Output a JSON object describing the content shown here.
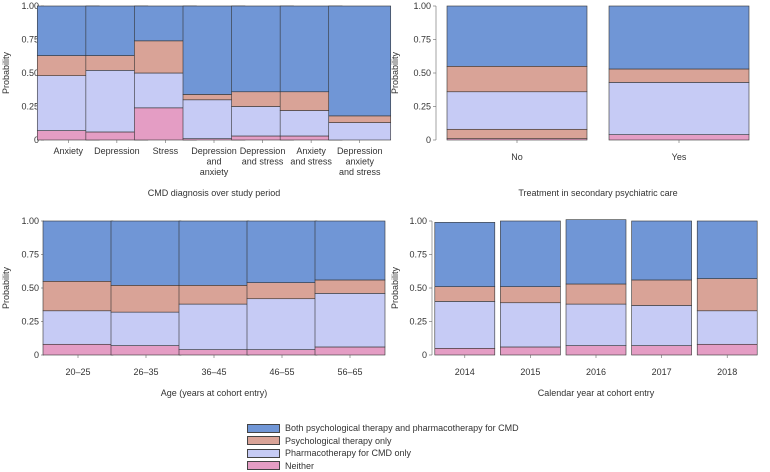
{
  "colors": {
    "both": "#7096D6",
    "psych": "#D9A397",
    "pharma": "#C6CBF5",
    "neither": "#E49DC4"
  },
  "legend": [
    {
      "key": "both",
      "label": "Both psychological therapy and pharmacotherapy for CMD"
    },
    {
      "key": "psych",
      "label": "Psychological therapy only"
    },
    {
      "key": "pharma",
      "label": "Pharmacotherapy for CMD only"
    },
    {
      "key": "neither",
      "label": "Neither"
    }
  ],
  "chart_data": [
    {
      "id": "cmd",
      "type": "bar",
      "stacked": true,
      "ylabel": "Probability",
      "xlabel": "CMD diagnosis over study period",
      "ylim": [
        0,
        1
      ],
      "yticks": [
        "0",
        "0.25",
        "0.50",
        "0.75",
        "1.00"
      ],
      "categories": [
        [
          "Anxiety"
        ],
        [
          "Depression"
        ],
        [
          "Stress"
        ],
        [
          "Depression",
          "and",
          "anxiety"
        ],
        [
          "Depression",
          "and stress"
        ],
        [
          "Anxiety",
          "and stress"
        ],
        [
          "Depression",
          "anxiety",
          "and stress"
        ]
      ],
      "series": [
        {
          "key": "neither",
          "name": "Neither",
          "values": [
            0.07,
            0.06,
            0.24,
            0.01,
            0.03,
            0.03,
            0.0
          ]
        },
        {
          "key": "pharma",
          "name": "Pharmacotherapy for CMD only",
          "values": [
            0.41,
            0.46,
            0.26,
            0.29,
            0.22,
            0.19,
            0.13
          ]
        },
        {
          "key": "psych",
          "name": "Psychological therapy only",
          "values": [
            0.15,
            0.11,
            0.24,
            0.04,
            0.11,
            0.14,
            0.05
          ]
        },
        {
          "key": "both",
          "name": "Both psychological therapy and pharmacotherapy for CMD",
          "values": [
            0.37,
            0.37,
            0.26,
            0.66,
            0.64,
            0.64,
            0.82
          ]
        }
      ]
    },
    {
      "id": "secondary",
      "type": "bar",
      "stacked": true,
      "ylabel": "Probability",
      "xlabel": "Treatment in secondary psychiatric care",
      "ylim": [
        0,
        1
      ],
      "yticks": [
        "0",
        "0.25",
        "0.50",
        "0.75",
        "1.00"
      ],
      "categories": [
        [
          "No"
        ],
        [
          "Yes"
        ]
      ],
      "series": [
        {
          "key": "neither",
          "name": "Neither",
          "values": [
            0.01,
            0.04
          ]
        },
        {
          "key": "psych",
          "name": "Psychological therapy only",
          "values": [
            0.07,
            0.0
          ]
        },
        {
          "key": "pharma",
          "name": "Pharmacotherapy for CMD only",
          "values": [
            0.28,
            0.39
          ]
        },
        {
          "key": "psych",
          "name": "Psychological therapy only",
          "values": [
            0.19,
            0.1
          ]
        },
        {
          "key": "both",
          "name": "Both psychological therapy and pharmacotherapy for CMD",
          "values": [
            0.45,
            0.47
          ]
        }
      ]
    },
    {
      "id": "age",
      "type": "bar",
      "stacked": true,
      "ylabel": "Probability",
      "xlabel": "Age (years at cohort entry)",
      "ylim": [
        0,
        1
      ],
      "yticks": [
        "0",
        "0.25",
        "0.50",
        "0.75",
        "1.00"
      ],
      "categories": [
        [
          "20–25"
        ],
        [
          "26–35"
        ],
        [
          "36–45"
        ],
        [
          "46–55"
        ],
        [
          "56–65"
        ]
      ],
      "series": [
        {
          "key": "neither",
          "name": "Neither",
          "values": [
            0.08,
            0.07,
            0.04,
            0.04,
            0.06
          ]
        },
        {
          "key": "pharma",
          "name": "Pharmacotherapy for CMD only",
          "values": [
            0.25,
            0.25,
            0.34,
            0.38,
            0.4
          ]
        },
        {
          "key": "psych",
          "name": "Psychological therapy only",
          "values": [
            0.22,
            0.2,
            0.14,
            0.12,
            0.1
          ]
        },
        {
          "key": "both",
          "name": "Both psychological therapy and pharmacotherapy for CMD",
          "values": [
            0.45,
            0.48,
            0.48,
            0.46,
            0.44
          ]
        }
      ]
    },
    {
      "id": "year",
      "type": "bar",
      "stacked": true,
      "ylabel": "Probability",
      "xlabel": "Calendar year at cohort entry",
      "ylim": [
        0,
        1
      ],
      "yticks": [
        "0",
        "0.25",
        "0.50",
        "0.75",
        "1.00"
      ],
      "categories": [
        [
          "2014"
        ],
        [
          "2015"
        ],
        [
          "2016"
        ],
        [
          "2017"
        ],
        [
          "2018"
        ]
      ],
      "series": [
        {
          "key": "neither",
          "name": "Neither",
          "values": [
            0.05,
            0.06,
            0.07,
            0.07,
            0.08
          ]
        },
        {
          "key": "pharma",
          "name": "Pharmacotherapy for CMD only",
          "values": [
            0.35,
            0.33,
            0.31,
            0.3,
            0.25
          ]
        },
        {
          "key": "psych",
          "name": "Psychological therapy only",
          "values": [
            0.11,
            0.12,
            0.15,
            0.19,
            0.24
          ]
        },
        {
          "key": "both",
          "name": "Both psychological therapy and pharmacotherapy for CMD",
          "values": [
            0.48,
            0.49,
            0.48,
            0.44,
            0.43
          ]
        }
      ]
    }
  ]
}
